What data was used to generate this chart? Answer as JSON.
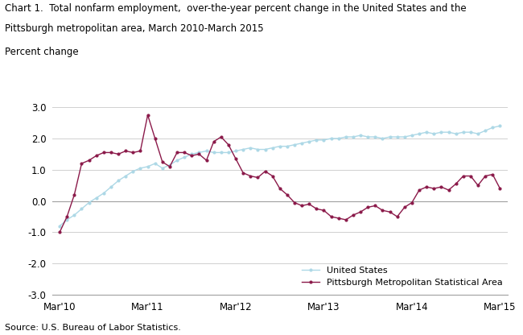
{
  "title_line1": "Chart 1.  Total nonfarm employment,  over-the-year percent change in the United States and the",
  "title_line2": "Pittsburgh metropolitan area, March 2010-March 2015",
  "ylabel": "Percent change",
  "source": "Source: U.S. Bureau of Labor Statistics.",
  "ylim": [
    -3.0,
    3.0
  ],
  "yticks": [
    -3.0,
    -2.0,
    -1.0,
    0.0,
    1.0,
    2.0,
    3.0
  ],
  "xtick_labels": [
    "Mar'10",
    "Mar'11",
    "Mar'12",
    "Mar'13",
    "Mar'14",
    "Mar'15"
  ],
  "us_color": "#add8e6",
  "pit_color": "#8B1A4A",
  "us_label": "United States",
  "pit_label": "Pittsburgh Metropolitan Statistical Area",
  "us_data": [
    -0.8,
    -0.6,
    -0.45,
    -0.25,
    -0.05,
    0.1,
    0.25,
    0.45,
    0.65,
    0.8,
    0.95,
    1.05,
    1.1,
    1.2,
    1.05,
    1.15,
    1.3,
    1.4,
    1.5,
    1.55,
    1.6,
    1.55,
    1.55,
    1.55,
    1.6,
    1.65,
    1.7,
    1.65,
    1.65,
    1.7,
    1.75,
    1.75,
    1.8,
    1.85,
    1.9,
    1.95,
    1.95,
    2.0,
    2.0,
    2.05,
    2.05,
    2.1,
    2.05,
    2.05,
    2.0,
    2.05,
    2.05,
    2.05,
    2.1,
    2.15,
    2.2,
    2.15,
    2.2,
    2.2,
    2.15,
    2.2,
    2.2,
    2.15,
    2.25,
    2.35,
    2.4
  ],
  "pit_data": [
    -1.0,
    -0.5,
    0.2,
    1.2,
    1.3,
    1.45,
    1.55,
    1.55,
    1.5,
    1.6,
    1.55,
    1.6,
    2.75,
    2.0,
    1.25,
    1.1,
    1.55,
    1.55,
    1.45,
    1.5,
    1.3,
    1.9,
    2.05,
    1.8,
    1.35,
    0.9,
    0.8,
    0.75,
    0.95,
    0.8,
    0.4,
    0.2,
    -0.05,
    -0.15,
    -0.1,
    -0.25,
    -0.3,
    -0.5,
    -0.55,
    -0.6,
    -0.45,
    -0.35,
    -0.2,
    -0.15,
    -0.3,
    -0.35,
    -0.5,
    -0.2,
    -0.05,
    0.35,
    0.45,
    0.4,
    0.45,
    0.35,
    0.55,
    0.8,
    0.8,
    0.5,
    0.8,
    0.85,
    0.4
  ]
}
